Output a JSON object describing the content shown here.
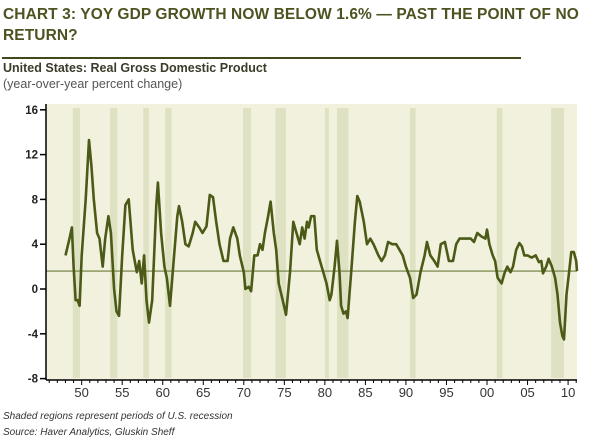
{
  "chart_data": {
    "type": "line",
    "title": "CHART 3: YOY GDP GROWTH NOW BELOW 1.6% — PAST THE POINT OF NO RETURN?",
    "subtitle": "United States: Real Gross Domestic Product",
    "subtitle2": "(year-over-year percent change)",
    "footnote": "Shaded regions represent periods of U.S. recession",
    "source": "Source: Haver Analytics, Gluskin Sheff",
    "ylim": [
      -8,
      16
    ],
    "yticks": [
      16,
      12,
      8,
      4,
      0,
      -4,
      -8
    ],
    "xtick_labels": [
      "50",
      "55",
      "60",
      "65",
      "70",
      "75",
      "80",
      "85",
      "90",
      "95",
      "00",
      "05",
      "10"
    ],
    "xtick_years": [
      1950,
      1955,
      1960,
      1965,
      1970,
      1975,
      1980,
      1985,
      1990,
      1995,
      2000,
      2005,
      2010
    ],
    "xlim": [
      1945.6,
      2011.1
    ],
    "reference_line": 1.6,
    "colors": {
      "line": "#4b5a17",
      "background": "#f2f1dd",
      "recession": "#dfe2c2",
      "reference": "#6b7a3a"
    },
    "recessions": [
      [
        1948.9,
        1949.8
      ],
      [
        1953.5,
        1954.4
      ],
      [
        1957.6,
        1958.3
      ],
      [
        1960.3,
        1961.1
      ],
      [
        1969.9,
        1970.9
      ],
      [
        1973.9,
        1975.2
      ],
      [
        1980.0,
        1980.5
      ],
      [
        1981.5,
        1982.9
      ],
      [
        1990.5,
        1991.2
      ],
      [
        2001.2,
        2001.9
      ],
      [
        2007.9,
        2009.5
      ]
    ],
    "series": [
      {
        "x": [
          1948.0,
          1948.5,
          1948.8,
          1949.0,
          1949.25,
          1949.5,
          1949.75,
          1950.0,
          1950.5,
          1950.9,
          1951.2,
          1951.5,
          1951.9,
          1952.2,
          1952.6,
          1952.9,
          1953.3,
          1953.6,
          1954.0,
          1954.3,
          1954.6,
          1955.0,
          1955.4,
          1955.8,
          1956.3,
          1956.8,
          1957.1,
          1957.4,
          1957.7,
          1958.0,
          1958.3,
          1958.7,
          1959.2,
          1959.4,
          1959.8,
          1960.2,
          1960.5,
          1960.9,
          1961.4,
          1961.8,
          1962.0,
          1962.4,
          1962.8,
          1963.2,
          1963.7,
          1964.0,
          1964.5,
          1964.9,
          1965.4,
          1965.8,
          1966.2,
          1966.6,
          1967.0,
          1967.5,
          1968.0,
          1968.3,
          1968.7,
          1969.2,
          1969.5,
          1970.0,
          1970.2,
          1970.6,
          1970.9,
          1971.3,
          1971.7,
          1972.0,
          1972.3,
          1972.6,
          1973.0,
          1973.3,
          1973.7,
          1974.0,
          1974.3,
          1974.8,
          1975.2,
          1975.7,
          1976.1,
          1976.5,
          1976.9,
          1977.2,
          1977.5,
          1977.8,
          1978.0,
          1978.3,
          1978.7,
          1979.0,
          1979.4,
          1979.8,
          1980.2,
          1980.6,
          1980.8,
          1981.2,
          1981.5,
          1981.8,
          1982.0,
          1982.3,
          1982.6,
          1982.8,
          1983.3,
          1983.7,
          1984.0,
          1984.3,
          1984.8,
          1985.2,
          1985.6,
          1986.0,
          1986.6,
          1987.0,
          1987.4,
          1987.8,
          1988.3,
          1988.8,
          1989.2,
          1989.6,
          1990.0,
          1990.5,
          1990.9,
          1991.3,
          1991.8,
          1992.3,
          1992.6,
          1993.0,
          1993.5,
          1993.9,
          1994.3,
          1994.8,
          1995.3,
          1995.8,
          1996.2,
          1996.6,
          1997.0,
          1997.5,
          1998.0,
          1998.4,
          1998.8,
          1999.3,
          1999.8,
          2000.0,
          2000.3,
          2000.7,
          2001.0,
          2001.3,
          2001.8,
          2002.2,
          2002.5,
          2002.9,
          2003.2,
          2003.6,
          2004.0,
          2004.3,
          2004.6,
          2005.0,
          2005.5,
          2006.0,
          2006.4,
          2006.7,
          2006.9,
          2007.3,
          2007.6,
          2008.0,
          2008.4,
          2008.7,
          2009.0,
          2009.3,
          2009.5,
          2009.8,
          2010.2,
          2010.4,
          2010.7,
          2011.0,
          2011.1
        ],
        "y": [
          3.0,
          4.5,
          5.5,
          2.0,
          -1.0,
          -1.0,
          -1.5,
          3.0,
          8.0,
          13.3,
          11.0,
          8.0,
          5.0,
          4.5,
          2.0,
          4.5,
          6.5,
          5.0,
          0.0,
          -2.0,
          -2.4,
          3.0,
          7.5,
          8.0,
          3.5,
          1.5,
          2.5,
          0.5,
          3.0,
          -1.0,
          -3.0,
          -1.0,
          7.5,
          9.5,
          5.0,
          2.0,
          1.0,
          -1.5,
          3.0,
          6.5,
          7.4,
          6.0,
          4.0,
          3.8,
          5.0,
          6.0,
          5.5,
          5.0,
          5.6,
          8.4,
          8.2,
          6.0,
          4.0,
          2.5,
          2.5,
          4.5,
          5.5,
          4.5,
          3.0,
          1.5,
          0.0,
          0.2,
          -0.2,
          3.0,
          3.0,
          4.0,
          3.5,
          5.0,
          6.5,
          7.8,
          5.0,
          3.5,
          0.5,
          -1.0,
          -2.3,
          1.5,
          6.0,
          5.0,
          4.0,
          5.5,
          4.5,
          6.0,
          5.5,
          6.5,
          6.5,
          3.5,
          2.5,
          1.5,
          0.5,
          -1.0,
          -0.5,
          2.0,
          4.3,
          1.5,
          -1.5,
          -2.2,
          -2.0,
          -2.6,
          2.0,
          6.0,
          8.3,
          7.8,
          6.0,
          4.0,
          4.5,
          4.0,
          3.0,
          2.5,
          3.0,
          4.2,
          4.0,
          4.0,
          3.5,
          3.0,
          2.0,
          1.0,
          -0.8,
          -0.5,
          1.5,
          3.0,
          4.2,
          3.0,
          2.5,
          2.0,
          4.0,
          4.2,
          2.5,
          2.5,
          4.0,
          4.5,
          4.5,
          4.5,
          4.5,
          4.2,
          5.0,
          4.7,
          4.5,
          5.3,
          4.0,
          3.0,
          2.5,
          1.0,
          0.5,
          1.5,
          2.0,
          1.5,
          2.0,
          3.5,
          4.1,
          3.8,
          3.0,
          3.0,
          2.8,
          3.0,
          2.4,
          2.5,
          1.4,
          2.0,
          2.7,
          2.0,
          1.0,
          -0.5,
          -3.0,
          -4.2,
          -4.5,
          -0.5,
          2.0,
          3.3,
          3.3,
          2.5,
          1.6
        ]
      }
    ]
  }
}
